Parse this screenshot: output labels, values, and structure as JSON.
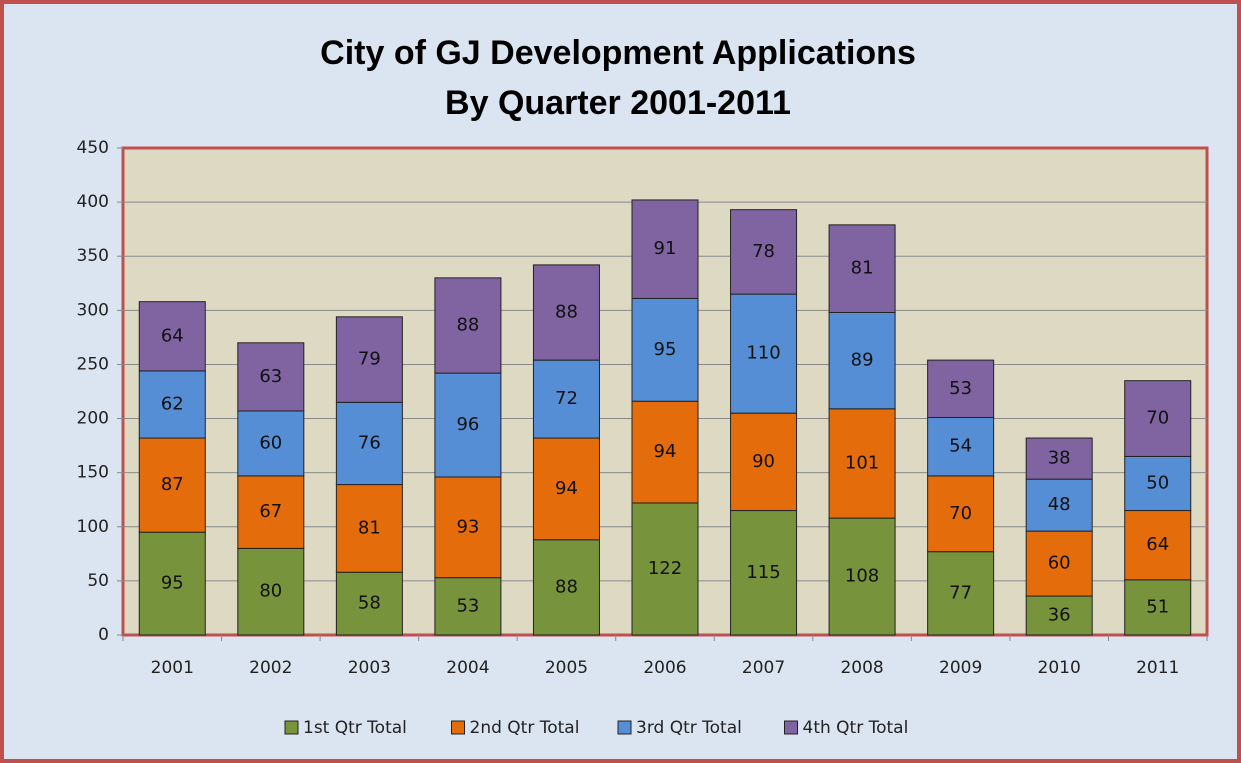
{
  "chart_data": {
    "type": "stacked_bar",
    "title": "City of GJ Development Applications",
    "subtitle": "By Quarter 2001-2011",
    "categories": [
      "2001",
      "2002",
      "2003",
      "2004",
      "2005",
      "2006",
      "2007",
      "2008",
      "2009",
      "2010",
      "2011"
    ],
    "series": [
      {
        "name": "1st Qtr Total",
        "color": "#77933c",
        "values": [
          95,
          80,
          58,
          53,
          88,
          122,
          115,
          108,
          77,
          36,
          51
        ]
      },
      {
        "name": "2nd Qtr Total",
        "color": "#e46c0a",
        "values": [
          87,
          67,
          81,
          93,
          94,
          94,
          90,
          101,
          70,
          60,
          64
        ]
      },
      {
        "name": "3rd Qtr Total",
        "color": "#558ed5",
        "values": [
          62,
          60,
          76,
          96,
          72,
          95,
          110,
          89,
          54,
          48,
          50
        ]
      },
      {
        "name": "4th Qtr Total",
        "color": "#8064a2",
        "values": [
          64,
          63,
          79,
          88,
          88,
          91,
          78,
          81,
          53,
          38,
          70
        ]
      }
    ],
    "ylim": [
      0,
      450
    ],
    "yticks": [
      0,
      50,
      100,
      150,
      200,
      250,
      300,
      350,
      400,
      450
    ],
    "grid": true,
    "legend": "bottom"
  }
}
